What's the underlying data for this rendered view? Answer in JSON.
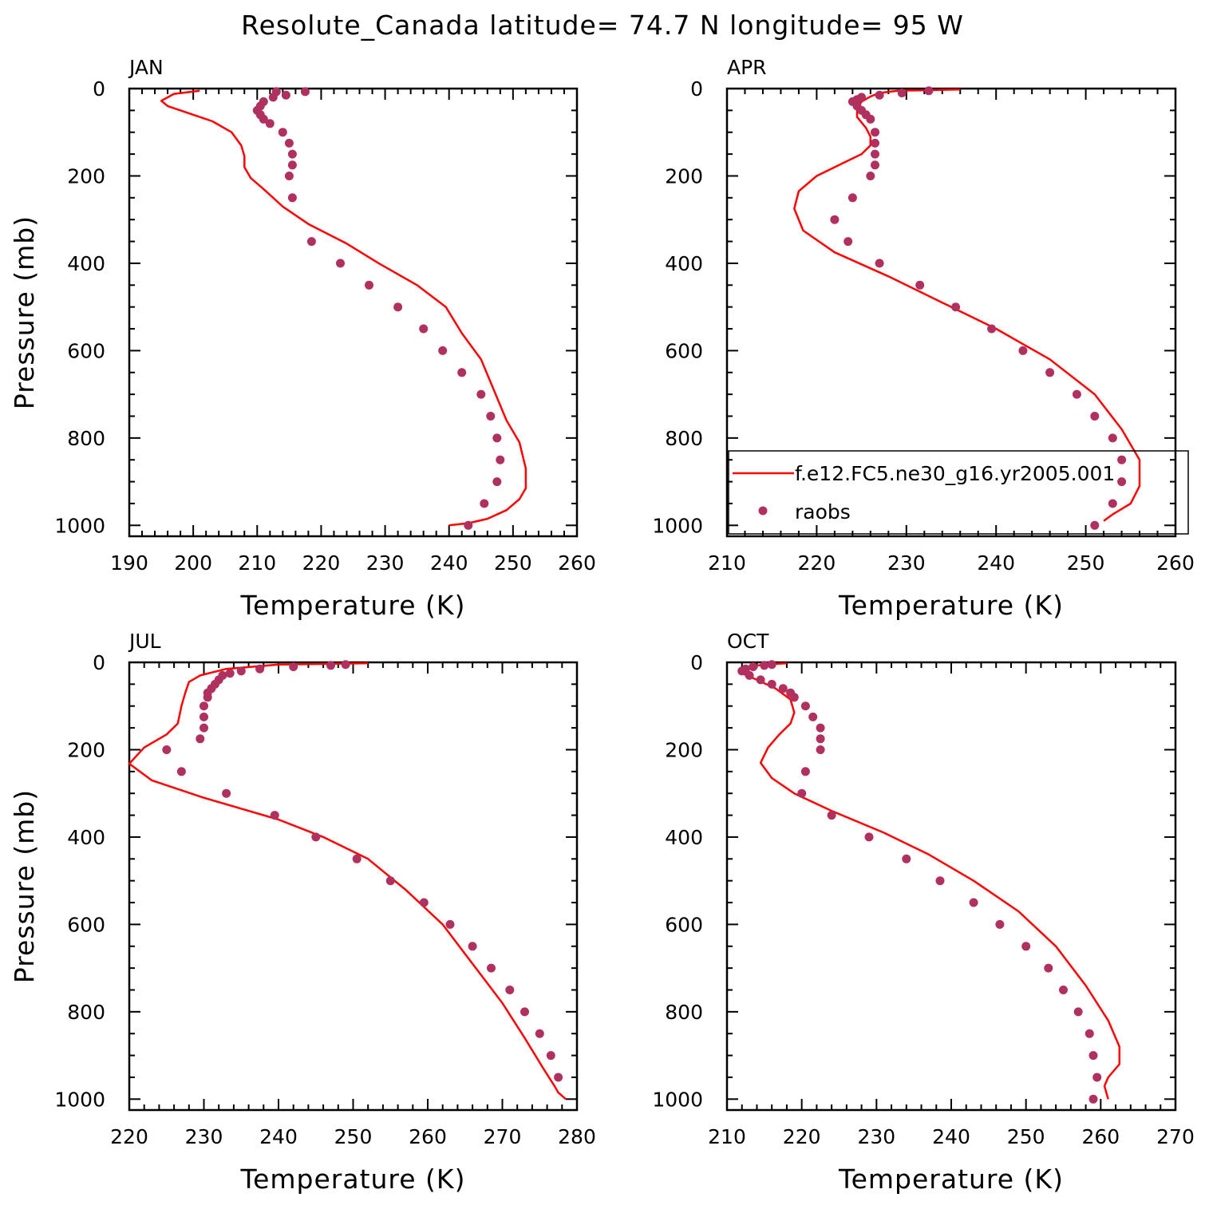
{
  "title": "Resolute_Canada  latitude= 74.7 N longitude= 95 W",
  "colors": {
    "model": "#ff0000",
    "obs": "#b03060",
    "axis": "#000000"
  },
  "chart_data": [
    {
      "type": "line",
      "panel_label": "JAN",
      "xlabel": "Temperature (K)",
      "ylabel": "Pressure (mb)",
      "xlim": [
        190,
        260
      ],
      "ylim": [
        1025,
        0
      ],
      "y_inverted": true,
      "xticks": [
        190,
        200,
        210,
        220,
        230,
        240,
        250,
        260
      ],
      "yticks": [
        0,
        200,
        400,
        600,
        800,
        1000
      ],
      "series": [
        {
          "kind": "line",
          "color": "#ff0000",
          "x": [
            201,
            197,
            195,
            196,
            199,
            203,
            206,
            207.5,
            208,
            208,
            209,
            211,
            214,
            218,
            224,
            229,
            235,
            239.5,
            242,
            245,
            247,
            249,
            251,
            252,
            252,
            251,
            249,
            246,
            243,
            240
          ],
          "y": [
            5,
            12,
            28,
            40,
            55,
            75,
            100,
            130,
            155,
            180,
            205,
            230,
            270,
            310,
            355,
            400,
            450,
            500,
            560,
            620,
            690,
            760,
            810,
            870,
            915,
            940,
            965,
            985,
            995,
            1000
          ]
        },
        {
          "kind": "points",
          "color": "#b03060",
          "x": [
            217.5,
            213,
            214.5,
            212.5,
            211,
            210.5,
            210,
            210.5,
            211,
            212,
            214,
            215,
            215.5,
            215.5,
            215,
            215.5,
            218.5,
            223,
            227.5,
            232,
            236,
            239,
            242,
            245,
            246.5,
            247.5,
            248,
            247.5,
            245.5,
            243
          ],
          "y": [
            7,
            7,
            15,
            20,
            30,
            40,
            50,
            60,
            70,
            80,
            100,
            125,
            150,
            175,
            200,
            250,
            350,
            400,
            450,
            500,
            550,
            600,
            650,
            700,
            750,
            800,
            850,
            900,
            950,
            1000
          ]
        }
      ]
    },
    {
      "type": "line",
      "panel_label": "APR",
      "xlabel": "Temperature (K)",
      "ylabel": "",
      "xlim": [
        210,
        260
      ],
      "ylim": [
        1025,
        0
      ],
      "y_inverted": true,
      "xticks": [
        210,
        220,
        230,
        240,
        250,
        260
      ],
      "yticks": [
        0,
        200,
        400,
        600,
        800,
        1000
      ],
      "legend": {
        "position": "lower-right",
        "entries": [
          "f.e12.FC5.ne30_g16.yr2005.001",
          "raobs"
        ]
      },
      "series": [
        {
          "name": "f.e12.FC5.ne30_g16.yr2005.001",
          "kind": "line",
          "color": "#ff0000",
          "x": [
            236,
            229,
            227,
            226,
            225,
            224.5,
            224.5,
            225.5,
            226,
            226,
            225,
            223,
            220,
            218,
            217.5,
            218.5,
            222,
            228,
            234,
            240,
            246,
            251,
            254,
            256,
            256,
            255,
            253,
            252
          ],
          "y": [
            2,
            5,
            10,
            18,
            30,
            45,
            65,
            90,
            110,
            130,
            150,
            170,
            200,
            235,
            275,
            325,
            375,
            430,
            490,
            550,
            620,
            700,
            780,
            850,
            910,
            950,
            975,
            990
          ]
        },
        {
          "name": "raobs",
          "kind": "points",
          "color": "#b03060",
          "x": [
            232.5,
            229.5,
            227,
            225,
            224.5,
            224,
            224.5,
            225,
            225.5,
            226,
            226.5,
            226.5,
            226.5,
            226.5,
            226,
            224,
            222,
            223.5,
            227,
            231.5,
            235.5,
            239.5,
            243,
            246,
            249,
            251,
            253,
            254,
            254,
            253,
            251
          ],
          "y": [
            5,
            10,
            15,
            20,
            25,
            30,
            40,
            50,
            60,
            70,
            100,
            125,
            150,
            175,
            200,
            250,
            300,
            350,
            400,
            450,
            500,
            550,
            600,
            650,
            700,
            750,
            800,
            850,
            900,
            950,
            1000
          ]
        }
      ]
    },
    {
      "type": "line",
      "panel_label": "JUL",
      "xlabel": "Temperature (K)",
      "ylabel": "Pressure (mb)",
      "xlim": [
        220,
        280
      ],
      "ylim": [
        1025,
        0
      ],
      "y_inverted": true,
      "xticks": [
        220,
        230,
        240,
        250,
        260,
        270,
        280
      ],
      "yticks": [
        0,
        200,
        400,
        600,
        800,
        1000
      ],
      "series": [
        {
          "kind": "line",
          "color": "#ff0000",
          "x": [
            252,
            240,
            233,
            229.5,
            228,
            227.5,
            227,
            226.5,
            225,
            222,
            220,
            223,
            230,
            240,
            246,
            252,
            257,
            262,
            266,
            270,
            273,
            275.5,
            277,
            277.5,
            278.5
          ],
          "y": [
            2,
            5,
            15,
            30,
            45,
            70,
            100,
            140,
            165,
            195,
            232,
            270,
            310,
            360,
            400,
            450,
            520,
            600,
            690,
            780,
            860,
            930,
            970,
            985,
            1000
          ]
        },
        {
          "kind": "points",
          "color": "#b03060",
          "x": [
            249,
            247,
            242,
            237.5,
            235,
            233.5,
            232.5,
            232,
            231.5,
            231,
            230.5,
            230.5,
            230,
            230,
            230,
            229.5,
            225,
            227,
            233,
            239.5,
            245,
            250.5,
            255,
            259.5,
            263,
            266,
            268.5,
            271,
            273,
            275,
            276.5,
            277.5
          ],
          "y": [
            5,
            7,
            10,
            15,
            20,
            25,
            30,
            40,
            50,
            60,
            70,
            80,
            100,
            125,
            150,
            175,
            200,
            250,
            300,
            350,
            400,
            450,
            500,
            550,
            600,
            650,
            700,
            750,
            800,
            850,
            900,
            950
          ]
        }
      ]
    },
    {
      "type": "line",
      "panel_label": "OCT",
      "xlabel": "Temperature (K)",
      "ylabel": "",
      "xlim": [
        210,
        270
      ],
      "ylim": [
        1025,
        0
      ],
      "y_inverted": true,
      "xticks": [
        210,
        220,
        230,
        240,
        250,
        260,
        270
      ],
      "yticks": [
        0,
        200,
        400,
        600,
        800,
        1000
      ],
      "series": [
        {
          "kind": "line",
          "color": "#ff0000",
          "x": [
            218,
            215,
            213,
            212,
            212,
            214,
            216.5,
            218.5,
            219,
            218.5,
            217,
            215.5,
            214.5,
            216,
            219,
            224,
            231,
            237,
            243,
            249,
            254,
            258,
            261,
            262.5,
            262.5,
            261,
            260.5,
            261
          ],
          "y": [
            2,
            5,
            10,
            15,
            25,
            40,
            60,
            85,
            115,
            140,
            165,
            195,
            230,
            265,
            300,
            340,
            390,
            440,
            500,
            570,
            650,
            740,
            820,
            880,
            920,
            950,
            970,
            1000
          ]
        },
        {
          "kind": "points",
          "color": "#b03060",
          "x": [
            216,
            215,
            213.5,
            212.5,
            212,
            213,
            214.5,
            216,
            217.5,
            218.5,
            219,
            220.5,
            221.5,
            222.5,
            222.5,
            222.5,
            220.5,
            220,
            224,
            229,
            234,
            238.5,
            243,
            246.5,
            250,
            253,
            255,
            257,
            258.5,
            259,
            259.5,
            259
          ],
          "y": [
            5,
            7,
            10,
            15,
            20,
            30,
            40,
            50,
            60,
            70,
            80,
            100,
            125,
            150,
            175,
            200,
            250,
            300,
            350,
            400,
            450,
            500,
            550,
            600,
            650,
            700,
            750,
            800,
            850,
            900,
            950,
            1000
          ]
        }
      ]
    }
  ]
}
